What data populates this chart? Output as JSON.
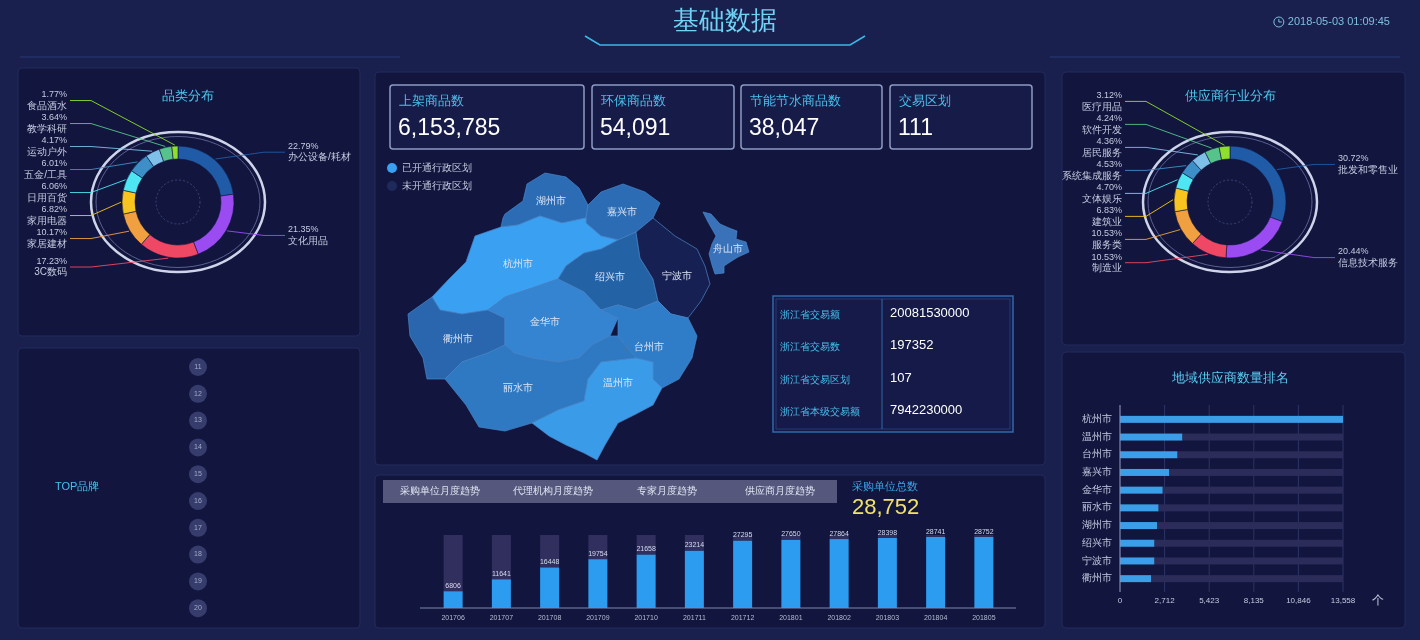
{
  "chart_data": [
    {
      "type": "other",
      "title": "基础数据",
      "annotations": [
        "2018-05-03 01:09:45"
      ]
    },
    {
      "type": "donut",
      "title": "品类分布",
      "categories": [
        "办公设备/耗材",
        "文化用品",
        "3C数码",
        "家居建材",
        "家用电器",
        "日用百货",
        "五金/工具",
        "运动户外",
        "教学科研",
        "食品酒水"
      ],
      "values": [
        22.79,
        21.35,
        17.23,
        10.17,
        6.82,
        6.06,
        6.01,
        4.17,
        3.64,
        1.77
      ],
      "value_labels": [
        "22.79%",
        "21.35%",
        "17.23%",
        "10.17%",
        "6.82%",
        "6.06%",
        "6.01%",
        "4.17%",
        "3.64%",
        "1.77%"
      ],
      "colors": [
        "#1f5ba6",
        "#9a4cf2",
        "#ef4864",
        "#f0a040",
        "#f7c51e",
        "#4de6f2",
        "#3d8fc8",
        "#7ec0e8",
        "#56c48a",
        "#8fe02a"
      ]
    },
    {
      "type": "other",
      "categories": [
        "上架商品数",
        "环保商品数",
        "节能节水商品数",
        "交易区划"
      ],
      "value_labels": [
        "6,153,785",
        "54,091",
        "38,047",
        "111"
      ]
    },
    {
      "type": "other",
      "categories": [
        "湖州市",
        "嘉兴市",
        "杭州市",
        "绍兴市",
        "宁波市",
        "舟山市",
        "衢州市",
        "金华市",
        "台州市",
        "丽水市",
        "温州市"
      ],
      "colors": [
        "#2b6cb4",
        "#2b6cb4",
        "#3aa0f2",
        "#2462a6",
        "#172052",
        "#3a72ba",
        "#2966ae",
        "#3484d2",
        "#2f7cc8",
        "#2f78c2",
        "#3a9ce8"
      ]
    },
    {
      "type": "other",
      "categories": [
        "已开通行政区划",
        "未开通行政区划"
      ],
      "colors": [
        "#3aa0f2",
        "#1e2a5c"
      ]
    },
    {
      "type": "other",
      "categories": [
        "浙江省交易额",
        "浙江省交易数",
        "浙江省交易区划",
        "浙江省本级交易额"
      ],
      "values": [
        20081530000,
        197352,
        107,
        7942230000
      ],
      "data_labels": true
    },
    {
      "type": "donut",
      "title": "供应商行业分布",
      "categories": [
        "批发和零售业",
        "信息技术服务",
        "制造业",
        "服务类",
        "建筑业",
        "文体娱乐",
        "系统集成服务",
        "居民服务",
        "软件开发",
        "医疗用品"
      ],
      "values": [
        30.72,
        20.44,
        10.53,
        10.53,
        6.83,
        4.7,
        4.53,
        4.36,
        4.24,
        3.12
      ],
      "value_labels": [
        "30.72%",
        "20.44%",
        "10.53%",
        "10.53%",
        "6.83%",
        "4.70%",
        "4.53%",
        "4.36%",
        "4.24%",
        "3.12%"
      ],
      "colors": [
        "#1f5ba6",
        "#9a4cf2",
        "#ef4864",
        "#f0a040",
        "#f7c51e",
        "#4de6f2",
        "#3d8fc8",
        "#7ec0e8",
        "#56c48a",
        "#8fe02a"
      ]
    },
    {
      "type": "other",
      "title": "TOP品牌",
      "categories": [
        null,
        null,
        null,
        null,
        null,
        null,
        null,
        null,
        null,
        null
      ],
      "values": [
        11,
        12,
        13,
        14,
        15,
        16,
        17,
        18,
        19,
        20
      ],
      "data_labels": true
    },
    {
      "type": "bar",
      "stacked": true,
      "categories": [
        "201706",
        "201707",
        "201708",
        "201709",
        "201710",
        "201711",
        "201712",
        "201801",
        "201802",
        "201803",
        "201804",
        "201805"
      ],
      "series": [
        {
          "color": "#2c9cf0",
          "values": [
            6806,
            11641,
            16448,
            19754,
            21658,
            23214,
            27295,
            27650,
            27864,
            28398,
            28741,
            28752
          ],
          "value_labels": [
            "6806",
            "11641",
            "16448",
            "19754",
            "21658",
            "23214",
            "27295",
            "27650",
            "27864",
            "28398",
            "28741",
            "28752"
          ]
        },
        {
          "color": "#302f5e",
          "values": [
            22694,
            17859,
            13052,
            9746,
            7842,
            6286,
            2205,
            1850,
            1636,
            1102,
            759,
            748
          ]
        }
      ],
      "ylim": [
        0,
        29500
      ],
      "tick_labels": "x",
      "annotations": [
        "采购单位月度趋势",
        "代理机构月度趋势",
        "专家月度趋势",
        "供应商月度趋势"
      ]
    },
    {
      "type": "other",
      "categories": [
        "采购单位总数"
      ],
      "value_labels": [
        "28,752"
      ]
    },
    {
      "type": "bar",
      "orientation": "horizontal",
      "stacked": true,
      "title": "地域供应商数量排名",
      "xlabel": "个",
      "categories": [
        "杭州市",
        "温州市",
        "台州市",
        "嘉兴市",
        "金华市",
        "丽水市",
        "湖州市",
        "绍兴市",
        "宁波市",
        "衢州市"
      ],
      "series": [
        {
          "color": "#3a9ee8",
          "values": [
            13558,
            3800,
            3500,
            3000,
            2600,
            2350,
            2250,
            2100,
            2100,
            1900
          ]
        },
        {
          "color": "#2b2c5a",
          "values": [
            null,
            9758,
            10058,
            10558,
            10958,
            11208,
            11308,
            11458,
            11458,
            11658
          ]
        }
      ],
      "xlim": [
        0,
        13558
      ],
      "xticks": [
        0,
        {
          "value": 2712,
          "label": "2,712"
        },
        {
          "value": 5423,
          "label": "5,423"
        },
        {
          "value": 8135,
          "label": "8,135"
        },
        {
          "value": 10846,
          "label": "10,846"
        },
        {
          "value": 13558,
          "label": "13,558"
        }
      ],
      "grid": "x"
    }
  ]
}
